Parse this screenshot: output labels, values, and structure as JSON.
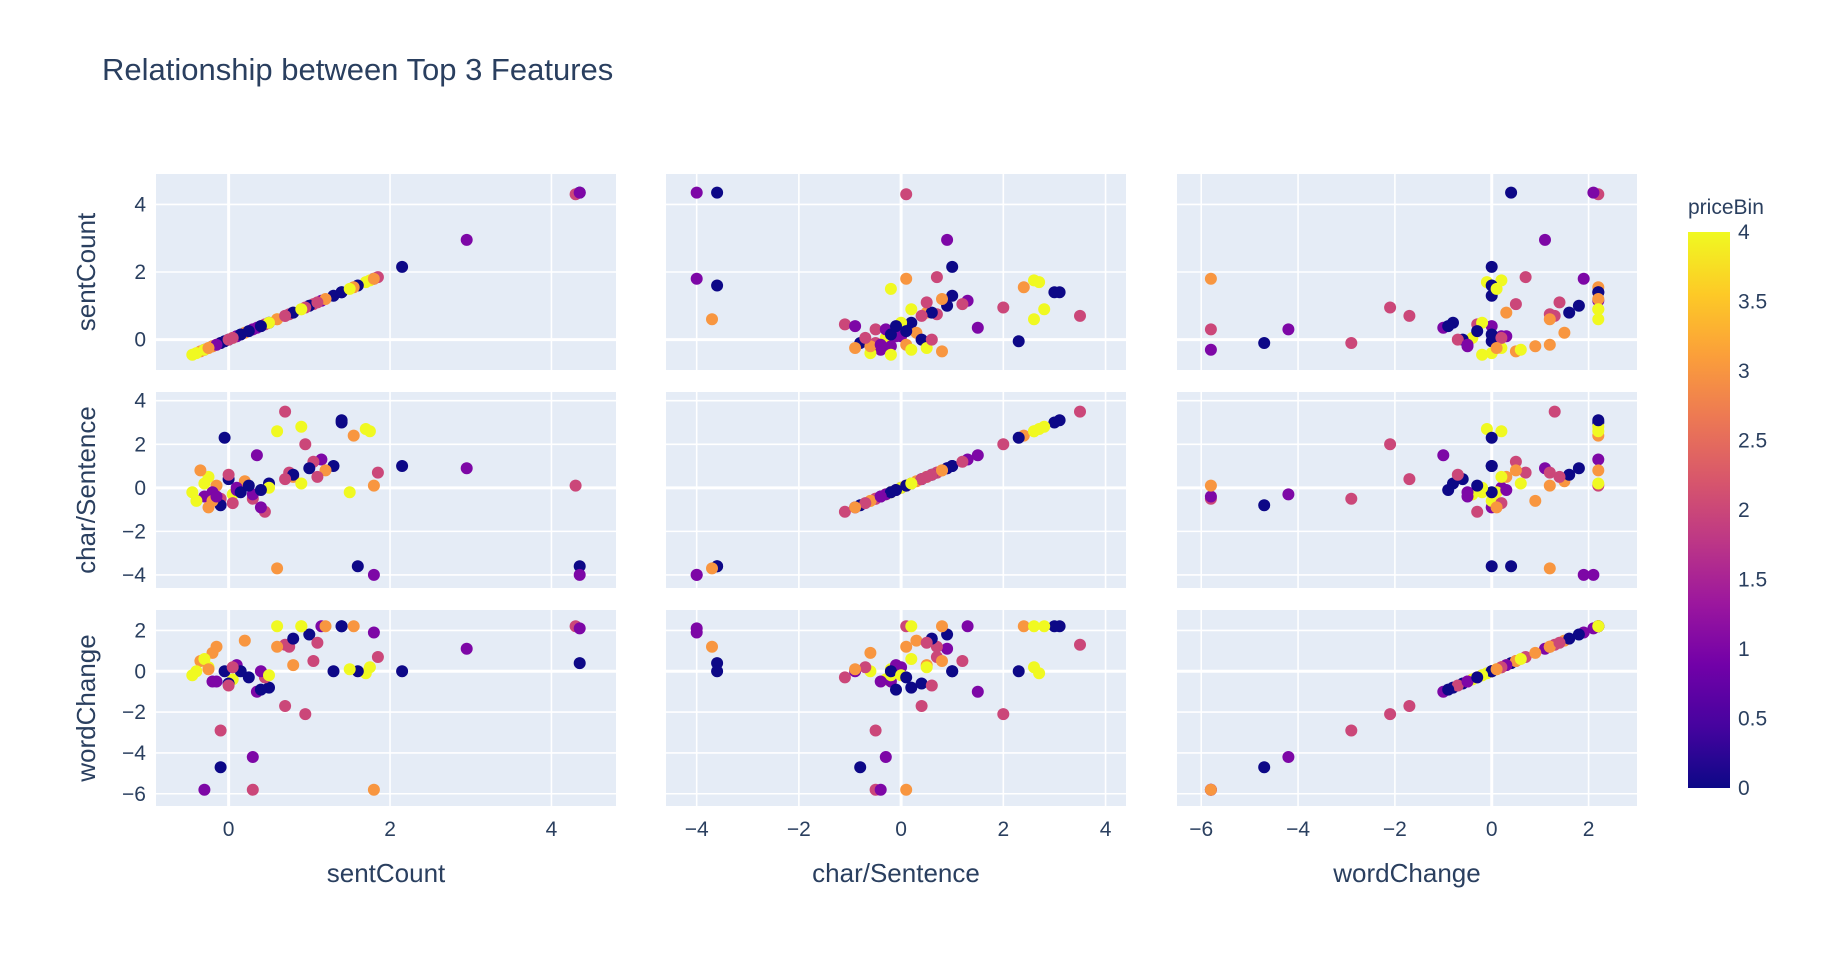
{
  "chart_data": {
    "type": "scatter",
    "title": "Relationship between Top 3 Features",
    "dimensions": [
      "sentCount",
      "char/Sentence",
      "wordChange"
    ],
    "axis_ranges": {
      "sentCount": [
        -0.9,
        4.8
      ],
      "char/Sentence": [
        -4.6,
        4.4
      ],
      "wordChange": [
        -6.5,
        3.0
      ]
    },
    "ticks": {
      "sentCount": [
        0,
        2,
        4
      ],
      "char/Sentence": [
        -4,
        -2,
        0,
        2,
        4
      ],
      "wordChange": [
        -6,
        -4,
        -2,
        0,
        2
      ]
    },
    "row_ticks": {
      "sentCount": [
        0,
        2,
        4
      ],
      "char/Sentence": [
        -4,
        -2,
        0,
        2,
        4
      ],
      "wordChange": [
        -6,
        -4,
        -2,
        0,
        2
      ]
    },
    "row_axis_ranges": {
      "sentCount": [
        -0.9,
        4.9
      ],
      "char/Sentence": [
        -4.6,
        4.4
      ],
      "wordChange": [
        -6.6,
        3.0
      ]
    },
    "colorbar": {
      "title": "priceBin",
      "range": [
        0,
        4
      ],
      "ticks": [
        0,
        0.5,
        1,
        1.5,
        2,
        2.5,
        3,
        3.5,
        4
      ],
      "tick_labels": [
        "0",
        "0.5",
        "1",
        "1.5",
        "2",
        "2.5",
        "3",
        "3.5",
        "4"
      ],
      "colorscale": [
        "#0d0887",
        "#46039f",
        "#7201a8",
        "#9c179e",
        "#bd3786",
        "#d8576b",
        "#ed7953",
        "#fb9f3a",
        "#fdca26",
        "#f0f921"
      ]
    },
    "grid": true,
    "legend": "colorbar-right",
    "points": {
      "sentCount": [
        4.35,
        4.3,
        2.95,
        2.15,
        1.85,
        1.8,
        1.75,
        1.7,
        1.6,
        1.55,
        1.4,
        1.3,
        1.15,
        1.05,
        1.0,
        0.9,
        0.8,
        0.75,
        0.7,
        0.6,
        0.5,
        0.45,
        0.4,
        0.3,
        0.2,
        0.1,
        0.05,
        0.0,
        -0.05,
        -0.1,
        -0.15,
        -0.2,
        -0.25,
        -0.3,
        -0.35,
        -0.4,
        -0.45,
        0.35,
        0.8,
        1.4,
        1.5,
        0.6,
        0.95,
        4.35,
        -0.1,
        0.7,
        1.8,
        -0.2,
        0.1,
        0.3,
        -0.3,
        0.0,
        0.15,
        1.2,
        0.5,
        -0.15,
        0.05,
        0.25,
        0.9,
        -0.25,
        0.4,
        1.1
      ],
      "char/Sentence": [
        -3.6,
        0.1,
        0.9,
        1.0,
        0.7,
        -4.0,
        2.6,
        2.7,
        -3.6,
        2.4,
        3.0,
        1.0,
        1.3,
        1.2,
        0.9,
        2.8,
        0.5,
        0.7,
        3.5,
        2.6,
        0.2,
        -1.1,
        -0.9,
        -0.5,
        0.3,
        0.0,
        -0.3,
        0.4,
        2.3,
        -0.5,
        0.1,
        -0.2,
        0.5,
        -0.4,
        0.8,
        -0.6,
        -0.2,
        1.5,
        0.6,
        3.1,
        -0.2,
        -3.7,
        2.0,
        -4.0,
        -0.8,
        0.4,
        0.1,
        -0.6,
        -0.1,
        -0.3,
        0.2,
        0.6,
        -0.2,
        0.8,
        0.0,
        -0.4,
        -0.7,
        0.1,
        0.2,
        -0.9,
        -0.1,
        0.5
      ],
      "wordChange": [
        0.4,
        2.2,
        1.1,
        0.0,
        0.7,
        1.9,
        0.2,
        -0.1,
        0.0,
        2.2,
        2.2,
        0.0,
        2.2,
        0.5,
        1.8,
        2.2,
        0.3,
        1.2,
        1.3,
        2.2,
        -0.8,
        -0.3,
        0.0,
        -5.8,
        1.5,
        0.2,
        -0.4,
        -0.6,
        0.0,
        -2.9,
        1.2,
        -0.5,
        0.2,
        -5.8,
        0.5,
        0.0,
        -0.2,
        -1.0,
        1.6,
        2.2,
        0.1,
        1.2,
        -2.1,
        2.1,
        -4.7,
        -1.7,
        -5.8,
        0.9,
        0.3,
        -4.2,
        0.6,
        -0.7,
        0.0,
        2.2,
        -0.2,
        -0.5,
        0.2,
        -0.3,
        2.2,
        0.1,
        -0.9,
        1.4
      ],
      "priceBin": [
        0,
        2,
        1,
        0,
        2,
        1,
        4,
        4,
        0,
        3,
        0,
        0,
        1,
        2,
        0,
        4,
        3,
        2,
        2,
        4,
        0,
        2,
        1,
        2,
        3,
        1,
        4,
        0,
        0,
        2,
        3,
        1,
        4,
        1,
        3,
        4,
        4,
        1,
        0,
        0,
        4,
        3,
        2,
        1,
        0,
        2,
        3,
        3,
        1,
        1,
        4,
        2,
        0,
        3,
        4,
        1,
        2,
        0,
        4,
        3,
        0,
        2
      ]
    }
  }
}
